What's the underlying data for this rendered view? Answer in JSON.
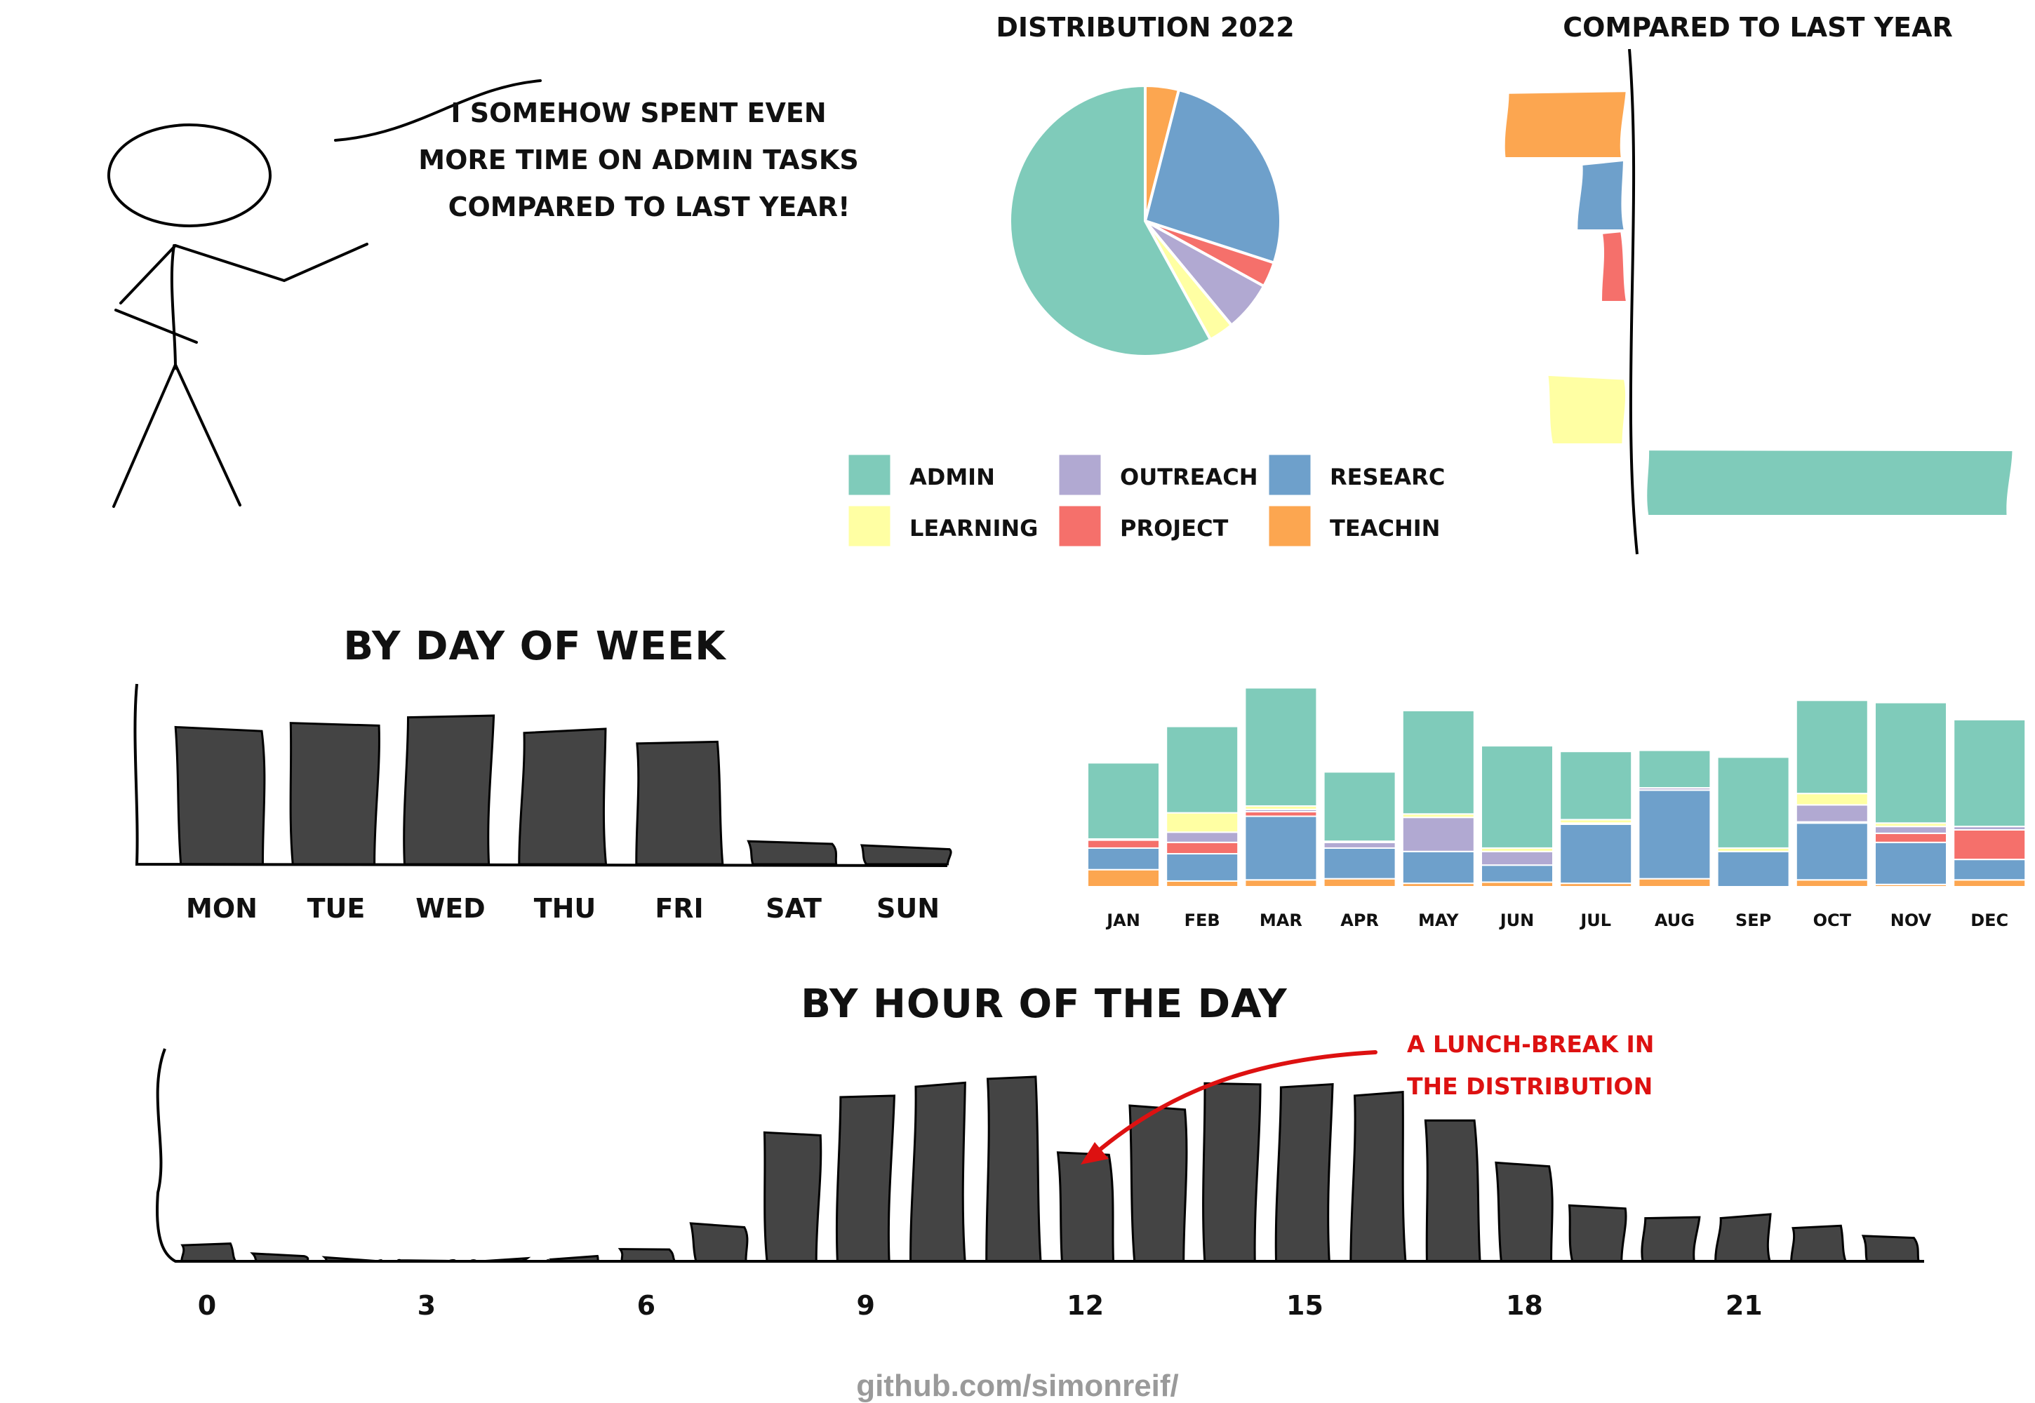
{
  "comic": {
    "speech_lines": [
      "I SOMEHOW SPENT EVEN",
      "MORE TIME ON ADMIN TASKS",
      "COMPARED TO LAST YEAR!"
    ]
  },
  "footer": {
    "text": "github.com/simonreif/"
  },
  "colors": {
    "ADMIN": "#7fcbba",
    "LEARNING": "#ffffa3",
    "OUTREACH": "#b1a9d2",
    "PROJECT": "#f5706b",
    "RESEARCH": "#6ea0cb",
    "TEACHING": "#fca650",
    "bars": "#444444",
    "annotation": "#dd1111"
  },
  "legend": {
    "items": [
      {
        "label": "ADMIN",
        "key": "ADMIN"
      },
      {
        "label": "LEARNING",
        "key": "LEARNING"
      },
      {
        "label": "OUTREACH",
        "key": "OUTREACH"
      },
      {
        "label": "PROJECT",
        "key": "PROJECT"
      },
      {
        "label": "RESEARC",
        "key": "RESEARCH"
      },
      {
        "label": "TEACHIN",
        "key": "TEACHING"
      }
    ]
  },
  "chart_data": [
    {
      "type": "pie",
      "title": "DISTRIBUTION 2022",
      "slices": [
        {
          "category": "TEACHING",
          "value": 4
        },
        {
          "category": "RESEARCH",
          "value": 26
        },
        {
          "category": "PROJECT",
          "value": 3
        },
        {
          "category": "OUTREACH",
          "value": 6
        },
        {
          "category": "LEARNING",
          "value": 3
        },
        {
          "category": "ADMIN",
          "value": 58
        }
      ]
    },
    {
      "type": "bar",
      "orientation": "horizontal",
      "title": "COMPARED TO LAST YEAR",
      "categories": [
        "TEACHING",
        "RESEARCH",
        "PROJECT",
        "OUTREACH",
        "LEARNING",
        "ADMIN"
      ],
      "values": [
        -8,
        -3,
        -1.5,
        0,
        -5,
        25
      ]
    },
    {
      "type": "bar",
      "title": "BY DAY OF WEEK",
      "categories": [
        "MON",
        "TUE",
        "WED",
        "THU",
        "FRI",
        "SAT",
        "SUN"
      ],
      "values": [
        100,
        105,
        111,
        99,
        89,
        15,
        13
      ]
    },
    {
      "type": "bar",
      "stacked": true,
      "categories": [
        "JAN",
        "FEB",
        "MAR",
        "APR",
        "MAY",
        "JUN",
        "JUL",
        "AUG",
        "SEP",
        "OCT",
        "NOV",
        "DEC"
      ],
      "series": [
        {
          "name": "TEACHING",
          "values": [
            15,
            5,
            6,
            7,
            3,
            4,
            3,
            7,
            0,
            6,
            2,
            6
          ]
        },
        {
          "name": "RESEARCH",
          "values": [
            19,
            24,
            56,
            27,
            28,
            15,
            52,
            78,
            31,
            50,
            37,
            18
          ]
        },
        {
          "name": "PROJECT",
          "values": [
            7,
            10,
            4,
            0,
            0,
            0,
            0,
            0,
            0,
            1,
            8,
            26
          ]
        },
        {
          "name": "OUTREACH",
          "values": [
            0,
            9,
            2,
            5,
            30,
            12,
            1,
            2,
            0,
            15,
            6,
            3
          ]
        },
        {
          "name": "LEARNING",
          "values": [
            1,
            17,
            3,
            1,
            3,
            3,
            3,
            0,
            3,
            10,
            3,
            0
          ]
        },
        {
          "name": "ADMIN",
          "values": [
            67,
            76,
            104,
            61,
            91,
            90,
            60,
            33,
            80,
            82,
            106,
            94
          ]
        }
      ]
    },
    {
      "type": "bar",
      "title": "BY HOUR OF THE DAY",
      "x": [
        0,
        1,
        2,
        3,
        4,
        5,
        6,
        7,
        8,
        9,
        10,
        11,
        12,
        13,
        14,
        15,
        16,
        17,
        18,
        19,
        20,
        21,
        22,
        23
      ],
      "xticks": [
        0,
        3,
        6,
        9,
        12,
        15,
        18,
        21
      ],
      "values": [
        6,
        2,
        1,
        1,
        1,
        1,
        4,
        14,
        51,
        66,
        70,
        72,
        42,
        61,
        71,
        70,
        66,
        55,
        38,
        22,
        18,
        18,
        13,
        9
      ],
      "annotation": [
        "A LUNCH-BREAK IN",
        "THE DISTRIBUTION"
      ]
    }
  ]
}
